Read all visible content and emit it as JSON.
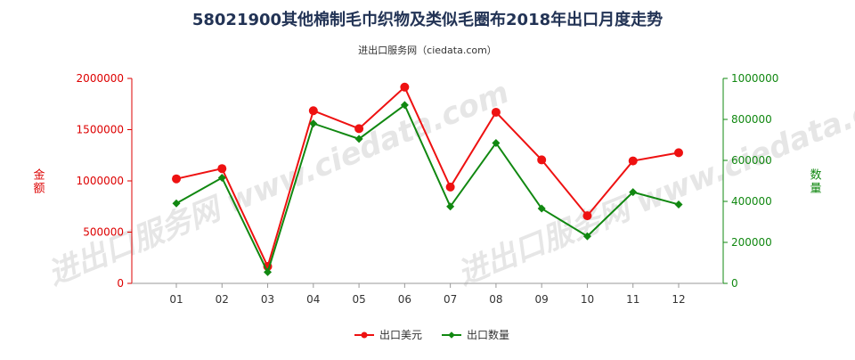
{
  "chart_data": {
    "type": "line",
    "title": "58021900其他棉制毛巾织物及类似毛圈布2018年出口月度走势",
    "subtitle": "进出口服务网（ciedata.com）",
    "categories": [
      "01",
      "02",
      "03",
      "04",
      "05",
      "06",
      "07",
      "08",
      "09",
      "10",
      "11",
      "12"
    ],
    "y_left": {
      "label": "金额",
      "ylim": [
        0,
        2000000
      ],
      "ticks": [
        "0",
        "500000",
        "1000000",
        "1500000",
        "2000000"
      ]
    },
    "y_right": {
      "label": "数量",
      "ylim": [
        0,
        1000000
      ],
      "ticks": [
        "0",
        "200000",
        "400000",
        "600000",
        "800000",
        "1000000"
      ]
    },
    "series": [
      {
        "name": "出口美元",
        "axis": "left",
        "color": "#ee1111",
        "marker": "circle",
        "values": [
          1020000,
          1120000,
          165000,
          1685000,
          1510000,
          1915000,
          940000,
          1670000,
          1205000,
          660000,
          1195000,
          1275000
        ]
      },
      {
        "name": "出口数量",
        "axis": "right",
        "color": "#118811",
        "marker": "diamond",
        "values": [
          390000,
          515000,
          55000,
          780000,
          705000,
          870000,
          375000,
          685000,
          365000,
          230000,
          445000,
          385000
        ]
      }
    ],
    "legend_position": "bottom",
    "grid": false,
    "left_axis_color": "#dd0000",
    "right_axis_color": "#118811",
    "watermark_text": "进出口服务网 www.ciedata.com"
  }
}
